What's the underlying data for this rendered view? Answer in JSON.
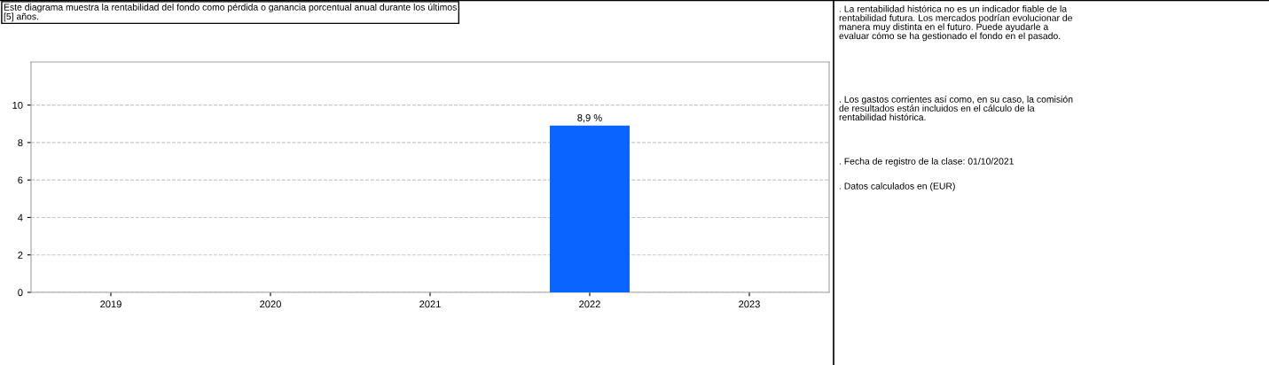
{
  "chart_data": {
    "type": "bar",
    "title": "Este diagrama muestra la rentabilidad del fondo como pérdida o ganancia porcentual anual durante los últimos\n[5] años.",
    "categories": [
      "2019",
      "2020",
      "2021",
      "2022",
      "2023"
    ],
    "values": [
      null,
      null,
      null,
      8.9,
      null
    ],
    "value_labels": [
      null,
      null,
      null,
      "8,9 %",
      null
    ],
    "color": "#0a64ff",
    "ylim": [
      0,
      12.3
    ],
    "yticks": [
      0,
      2,
      4,
      6,
      8,
      10
    ],
    "grid": "y",
    "annotations": [
      ". La rentabilidad histórica no es un indicador fiable de la\nrentabilidad futura. Los mercados podrían evolucionar de\nmanera muy distinta en el futuro. Puede ayudarle a\nevaluar cómo se ha gestionado el fondo en el pasado.",
      ". Los gastos corrientes así como, en su caso, la comisión\nde resultados están incluidos en el cálculo de la\nrentabilidad histórica.",
      ". Fecha de registro de la clase: 01/10/2021",
      ". Datos calculados en (EUR)"
    ]
  }
}
